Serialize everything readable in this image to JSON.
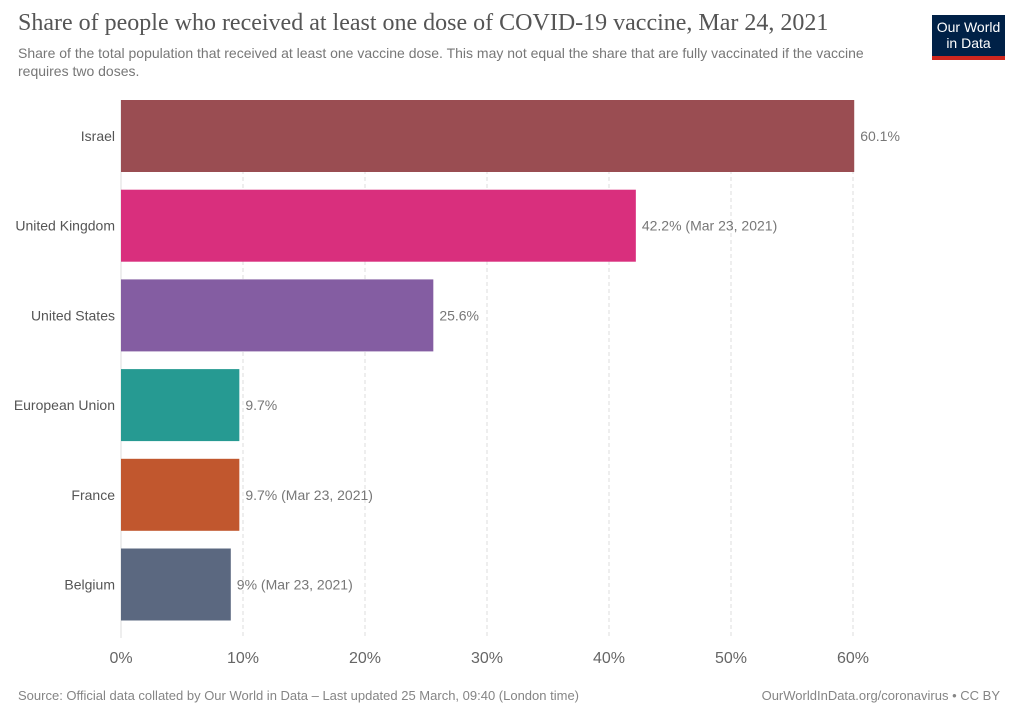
{
  "header": {
    "title": "Share of people who received at least one dose of COVID-19 vaccine, Mar 24, 2021",
    "subtitle": "Share of the total population that received at least one vaccine dose. This may not equal the share that are fully vaccinated if the vaccine requires two doses.",
    "logo_line1": "Our World",
    "logo_line2": "in Data"
  },
  "footer": {
    "source": "Source: Official data collated by Our World in Data – Last updated 25 March, 09:40 (London time)",
    "link": "OurWorldInData.org/coronavirus • CC BY"
  },
  "colors": {
    "logo_bg": "#002147",
    "logo_accent": "#ce261e",
    "grid": "#dddddd",
    "axis_text": "#666666",
    "label_text": "#555555",
    "value_text": "#777777"
  },
  "chart_data": {
    "type": "bar",
    "orientation": "horizontal",
    "title": "Share of people who received at least one dose of COVID-19 vaccine, Mar 24, 2021",
    "xlabel": "",
    "ylabel": "",
    "xlim": [
      0,
      60
    ],
    "xticks": [
      0,
      10,
      20,
      30,
      40,
      50,
      60
    ],
    "xtick_labels": [
      "0%",
      "10%",
      "20%",
      "30%",
      "40%",
      "50%",
      "60%"
    ],
    "grid": true,
    "categories": [
      "Israel",
      "United Kingdom",
      "United States",
      "European Union",
      "France",
      "Belgium"
    ],
    "values": [
      60.1,
      42.2,
      25.6,
      9.7,
      9.7,
      9.0
    ],
    "value_labels": [
      "60.1%",
      "42.2% (Mar 23, 2021)",
      "25.6%",
      "9.7%",
      "9.7% (Mar 23, 2021)",
      "9% (Mar 23, 2021)"
    ],
    "bar_colors": [
      "#9a4d52",
      "#d92f7d",
      "#845da2",
      "#269a92",
      "#c1572e",
      "#5b6880"
    ]
  }
}
